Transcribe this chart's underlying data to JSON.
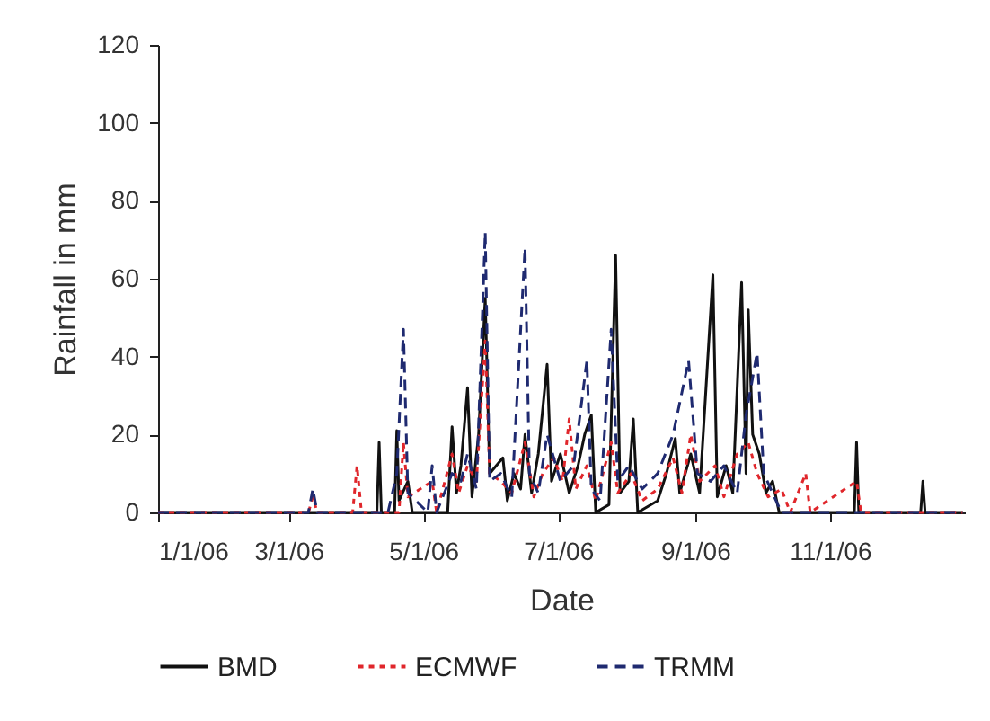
{
  "chart_data": {
    "type": "line",
    "xlabel": "Date",
    "ylabel": "Rainfall in mm",
    "xlim": [
      "2006-01-01",
      "2007-01-01"
    ],
    "xticks": [
      {
        "value": "2006-01-01",
        "label": "1/1/06"
      },
      {
        "value": "2006-03-01",
        "label": "3/1/06"
      },
      {
        "value": "2006-05-01",
        "label": "5/1/06"
      },
      {
        "value": "2006-07-01",
        "label": "7/1/06"
      },
      {
        "value": "2006-09-01",
        "label": "9/1/06"
      },
      {
        "value": "2006-11-01",
        "label": "11/1/06"
      }
    ],
    "ylim": [
      0,
      120
    ],
    "yticks": [
      0,
      20,
      40,
      60,
      80,
      100,
      120
    ],
    "grid": false,
    "legend": "bottom",
    "marker": "none",
    "series": [
      {
        "name": "BMD",
        "color": "#111111",
        "line_style": "solid",
        "x": [
          "2006-01-01",
          "2006-04-10",
          "2006-04-11",
          "2006-04-12",
          "2006-04-18",
          "2006-04-19",
          "2006-04-20",
          "2006-04-24",
          "2006-04-26",
          "2006-05-12",
          "2006-05-14",
          "2006-05-16",
          "2006-05-18",
          "2006-05-21",
          "2006-05-23",
          "2006-05-26",
          "2006-05-29",
          "2006-05-31",
          "2006-06-03",
          "2006-06-06",
          "2006-06-08",
          "2006-06-11",
          "2006-06-14",
          "2006-06-16",
          "2006-06-19",
          "2006-06-22",
          "2006-06-26",
          "2006-06-28",
          "2006-07-02",
          "2006-07-06",
          "2006-07-10",
          "2006-07-13",
          "2006-07-16",
          "2006-07-18",
          "2006-07-24",
          "2006-07-27",
          "2006-07-29",
          "2006-08-02",
          "2006-08-04",
          "2006-08-06",
          "2006-08-15",
          "2006-08-19",
          "2006-08-23",
          "2006-08-25",
          "2006-08-30",
          "2006-09-03",
          "2006-09-09",
          "2006-09-11",
          "2006-09-15",
          "2006-09-18",
          "2006-09-22",
          "2006-09-24",
          "2006-09-25",
          "2006-09-27",
          "2006-09-30",
          "2006-10-03",
          "2006-10-06",
          "2006-10-09",
          "2006-11-12",
          "2006-11-13",
          "2006-11-14",
          "2006-12-12",
          "2006-12-13",
          "2006-12-14",
          "2006-12-31"
        ],
        "values": [
          0,
          0,
          18,
          0,
          0,
          21,
          3,
          8,
          0,
          0,
          22,
          5,
          12,
          32,
          4,
          20,
          55,
          10,
          12,
          14,
          3,
          10,
          6,
          20,
          5,
          15,
          38,
          8,
          15,
          5,
          12,
          20,
          25,
          0,
          2,
          66,
          5,
          8,
          24,
          0,
          3,
          10,
          19,
          5,
          15,
          5,
          61,
          4,
          12,
          5,
          59,
          10,
          52,
          20,
          15,
          5,
          8,
          0,
          0,
          18,
          0,
          0,
          8,
          0,
          0
        ]
      },
      {
        "name": "ECMWF",
        "color": "#e0262b",
        "line_style": "dotted",
        "x": [
          "2006-01-01",
          "2006-03-10",
          "2006-03-12",
          "2006-03-14",
          "2006-03-30",
          "2006-04-01",
          "2006-04-03",
          "2006-04-20",
          "2006-04-22",
          "2006-04-24",
          "2006-05-05",
          "2006-05-07",
          "2006-05-14",
          "2006-05-17",
          "2006-05-21",
          "2006-05-25",
          "2006-05-29",
          "2006-05-31",
          "2006-06-05",
          "2006-06-10",
          "2006-06-16",
          "2006-06-20",
          "2006-06-24",
          "2006-06-29",
          "2006-07-03",
          "2006-07-06",
          "2006-07-09",
          "2006-07-14",
          "2006-07-18",
          "2006-07-25",
          "2006-07-28",
          "2006-08-03",
          "2006-08-08",
          "2006-08-15",
          "2006-08-22",
          "2006-08-26",
          "2006-08-30",
          "2006-09-03",
          "2006-09-10",
          "2006-09-14",
          "2006-09-20",
          "2006-09-25",
          "2006-09-29",
          "2006-10-04",
          "2006-10-10",
          "2006-10-14",
          "2006-10-21",
          "2006-10-23",
          "2006-11-13",
          "2006-11-15",
          "2006-12-31"
        ],
        "values": [
          0,
          0,
          4,
          0,
          0,
          12,
          0,
          0,
          18,
          4,
          8,
          0,
          15,
          5,
          12,
          8,
          44,
          10,
          8,
          5,
          18,
          4,
          10,
          14,
          8,
          24,
          6,
          12,
          3,
          18,
          5,
          10,
          3,
          6,
          14,
          5,
          20,
          8,
          12,
          4,
          15,
          18,
          10,
          4,
          6,
          0,
          10,
          0,
          8,
          0,
          0
        ]
      },
      {
        "name": "TRMM",
        "color": "#1f2a70",
        "line_style": "dashed",
        "x": [
          "2006-01-01",
          "2006-03-10",
          "2006-03-12",
          "2006-03-14",
          "2006-04-15",
          "2006-04-19",
          "2006-04-22",
          "2006-04-24",
          "2006-05-03",
          "2006-05-05",
          "2006-05-07",
          "2006-05-14",
          "2006-05-18",
          "2006-05-21",
          "2006-05-25",
          "2006-05-29",
          "2006-05-31",
          "2006-06-05",
          "2006-06-10",
          "2006-06-16",
          "2006-06-18",
          "2006-06-22",
          "2006-06-26",
          "2006-07-02",
          "2006-07-08",
          "2006-07-14",
          "2006-07-16",
          "2006-07-20",
          "2006-07-25",
          "2006-07-28",
          "2006-08-02",
          "2006-08-08",
          "2006-08-15",
          "2006-08-22",
          "2006-08-29",
          "2006-09-02",
          "2006-09-08",
          "2006-09-14",
          "2006-09-20",
          "2006-09-24",
          "2006-09-29",
          "2006-10-02",
          "2006-10-06",
          "2006-10-10",
          "2006-12-31"
        ],
        "values": [
          0,
          0,
          6,
          0,
          0,
          10,
          47,
          5,
          0,
          12,
          0,
          10,
          8,
          15,
          6,
          72,
          8,
          10,
          4,
          68,
          10,
          5,
          20,
          8,
          12,
          39,
          6,
          3,
          47,
          8,
          12,
          6,
          10,
          20,
          39,
          10,
          8,
          12,
          5,
          25,
          41,
          10,
          5,
          0,
          0
        ]
      }
    ]
  }
}
